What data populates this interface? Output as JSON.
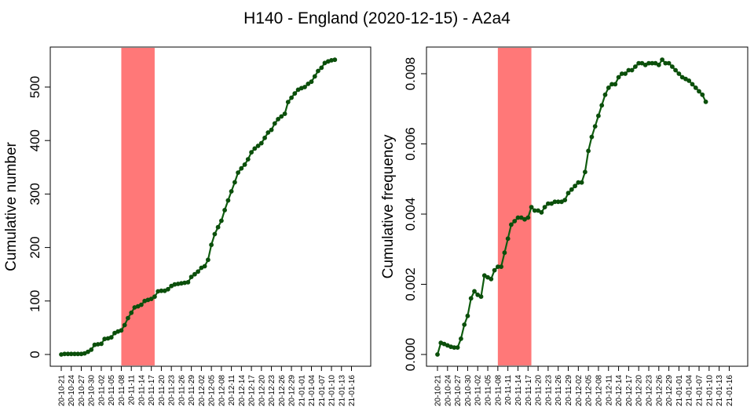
{
  "title": "H140 - England (2020-12-15) - A2a4",
  "colors": {
    "line": "#0f5c0f",
    "marker": "#0b4f0b",
    "highlight": "#ff7878",
    "axis": "#000000"
  },
  "x_tick_labels": [
    "20-10-21",
    "20-10-24",
    "20-10-27",
    "20-10-30",
    "20-11-02",
    "20-11-05",
    "20-11-08",
    "20-11-11",
    "20-11-14",
    "20-11-17",
    "20-11-20",
    "20-11-23",
    "20-11-26",
    "20-11-29",
    "20-12-02",
    "20-12-05",
    "20-12-08",
    "20-12-11",
    "20-12-14",
    "20-12-17",
    "20-12-20",
    "20-12-23",
    "20-12-26",
    "20-12-29",
    "21-01-01",
    "21-01-04",
    "21-01-07",
    "21-01-10",
    "21-01-13",
    "21-01-16"
  ],
  "chart_data": [
    {
      "type": "line",
      "ylabel": "Cumulative number",
      "x_start": "2020-10-21",
      "x_end": "2021-01-18",
      "highlight_range": [
        "2020-11-08",
        "2020-11-18"
      ],
      "ylim": [
        0,
        570
      ],
      "y_ticks": [
        0,
        100,
        200,
        300,
        400,
        500
      ],
      "y_tick_labels": [
        "0",
        "100",
        "200",
        "300",
        "400",
        "500"
      ],
      "series": [
        {
          "values": [
            0,
            1,
            1,
            1,
            1,
            1,
            1,
            2,
            5,
            9,
            18,
            19,
            20,
            29,
            30,
            32,
            40,
            43,
            45,
            55,
            68,
            78,
            88,
            90,
            93,
            100,
            102,
            104,
            108,
            118,
            119,
            119,
            122,
            128,
            131,
            132,
            133,
            134,
            135,
            145,
            150,
            155,
            162,
            165,
            177,
            205,
            225,
            238,
            250,
            270,
            288,
            305,
            322,
            340,
            348,
            355,
            365,
            378,
            385,
            390,
            395,
            405,
            415,
            420,
            432,
            440,
            445,
            450,
            472,
            480,
            488,
            495,
            498,
            500,
            506,
            510,
            520,
            530,
            536,
            545,
            548,
            550,
            551
          ]
        }
      ]
    },
    {
      "type": "line",
      "ylabel": "Cumulative frequency",
      "x_start": "2020-10-21",
      "x_end": "2021-01-18",
      "highlight_range": [
        "2020-11-08",
        "2020-11-18"
      ],
      "ylim": [
        0,
        0.0087
      ],
      "y_ticks": [
        0,
        0.002,
        0.004,
        0.006,
        0.008
      ],
      "y_tick_labels": [
        "0.000",
        "0.002",
        "0.004",
        "0.006",
        "0.008"
      ],
      "series": [
        {
          "values": [
            0.0,
            0.00033,
            0.0003,
            0.00026,
            0.00022,
            0.0002,
            0.0002,
            0.00045,
            0.00085,
            0.0011,
            0.0016,
            0.0018,
            0.0017,
            0.00165,
            0.00225,
            0.0022,
            0.00215,
            0.0024,
            0.0025,
            0.0025,
            0.0029,
            0.0033,
            0.0037,
            0.0038,
            0.0039,
            0.0039,
            0.00385,
            0.0039,
            0.0042,
            0.0041,
            0.0041,
            0.00405,
            0.0042,
            0.0043,
            0.0043,
            0.00435,
            0.00435,
            0.00435,
            0.0044,
            0.0046,
            0.0047,
            0.0048,
            0.0049,
            0.0049,
            0.0052,
            0.0058,
            0.0062,
            0.0065,
            0.0068,
            0.0071,
            0.0074,
            0.0076,
            0.0077,
            0.0077,
            0.0079,
            0.008,
            0.008,
            0.0081,
            0.0081,
            0.0082,
            0.0083,
            0.0083,
            0.00825,
            0.0083,
            0.0083,
            0.0083,
            0.00825,
            0.0084,
            0.0083,
            0.0083,
            0.0082,
            0.0081,
            0.008,
            0.0079,
            0.00785,
            0.0078,
            0.0077,
            0.0076,
            0.0075,
            0.0074,
            0.0072
          ]
        }
      ]
    }
  ]
}
